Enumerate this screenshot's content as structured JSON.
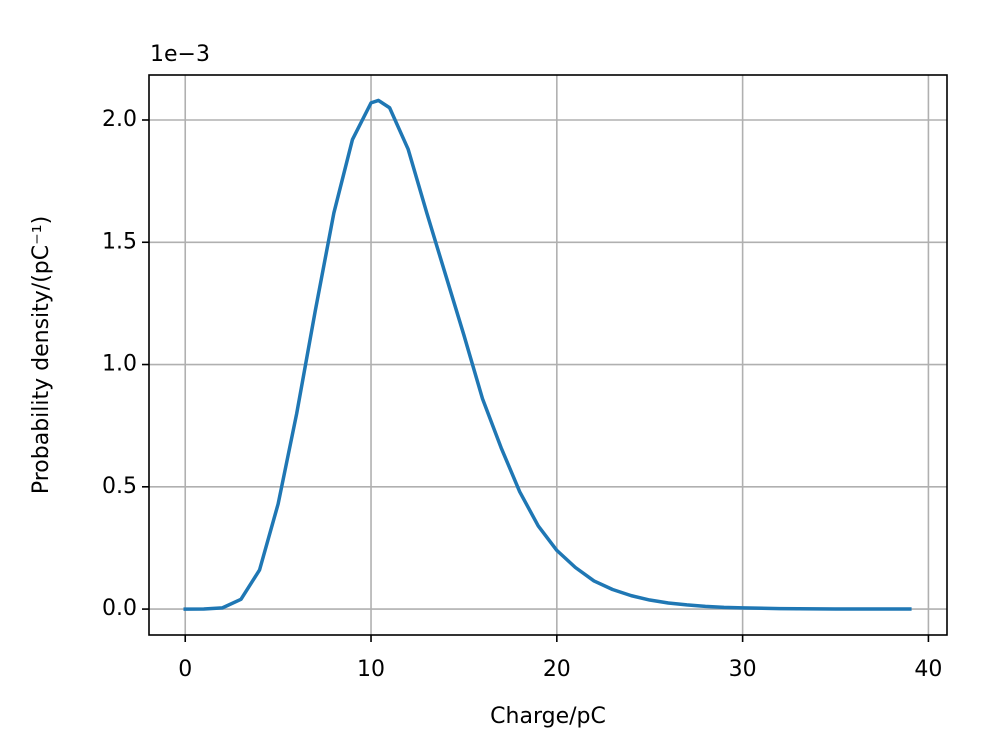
{
  "chart_data": {
    "type": "line",
    "xlabel": "Charge/pC",
    "ylabel": "Probability density/(pC⁻¹)",
    "y_offset_label": "1e−3",
    "x": [
      0,
      1,
      2,
      3,
      4,
      5,
      6,
      7,
      8,
      9,
      10,
      10.4,
      11,
      12,
      13,
      14,
      15,
      16,
      17,
      18,
      19,
      20,
      21,
      22,
      23,
      24,
      25,
      26,
      27,
      28,
      29,
      30,
      32,
      35,
      39
    ],
    "series": [
      {
        "color": "#1f77b4",
        "values": [
          0,
          0.0005,
          0.005,
          0.04,
          0.16,
          0.43,
          0.8,
          1.22,
          1.62,
          1.92,
          2.07,
          2.08,
          2.05,
          1.88,
          1.62,
          1.37,
          1.12,
          0.86,
          0.66,
          0.48,
          0.34,
          0.24,
          0.17,
          0.115,
          0.08,
          0.055,
          0.037,
          0.025,
          0.017,
          0.011,
          0.007,
          0.005,
          0.002,
          0.0005,
          0.0001
        ]
      }
    ],
    "xlim": [
      -1.95,
      41.0
    ],
    "ylim": [
      -0.106,
      2.184
    ],
    "xticks": [
      0,
      10,
      20,
      30,
      40
    ],
    "yticks": [
      {
        "value": 0,
        "label": "0.0"
      },
      {
        "value": 0.5,
        "label": "0.5"
      },
      {
        "value": 1,
        "label": "1.0"
      },
      {
        "value": 1.5,
        "label": "1.5"
      },
      {
        "value": 2,
        "label": "2.0"
      }
    ],
    "grid": true
  }
}
